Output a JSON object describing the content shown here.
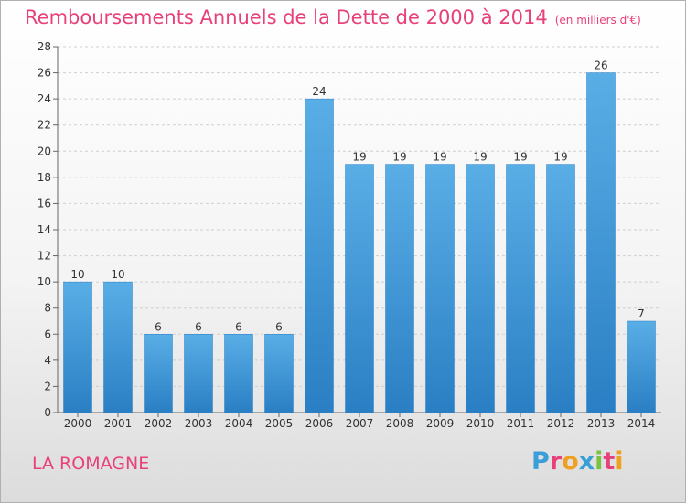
{
  "header": {
    "title": "Remboursements Annuels de la Dette de 2000 à 2014",
    "unit": "(en milliers d'€)"
  },
  "footer": {
    "commune": "LA ROMAGNE",
    "logo_letters": [
      "P",
      "r",
      "o",
      "x",
      "i",
      "t",
      "i"
    ]
  },
  "colors": {
    "title": "#e8407a",
    "bar_light": "#5aaee6",
    "bar_dark": "#2a7fc4"
  },
  "chart_data": {
    "type": "bar",
    "title": "Remboursements Annuels de la Dette de 2000 à 2014",
    "categories": [
      "2000",
      "2001",
      "2002",
      "2003",
      "2004",
      "2005",
      "2006",
      "2007",
      "2008",
      "2009",
      "2010",
      "2011",
      "2012",
      "2013",
      "2014"
    ],
    "values": [
      10,
      10,
      6,
      6,
      6,
      6,
      24,
      19,
      19,
      19,
      19,
      19,
      19,
      26,
      7
    ],
    "ylim": [
      0,
      28
    ],
    "yticks": [
      0,
      2,
      4,
      6,
      8,
      10,
      12,
      14,
      16,
      18,
      20,
      22,
      24,
      26,
      28
    ],
    "grid": true,
    "data_labels": true
  }
}
